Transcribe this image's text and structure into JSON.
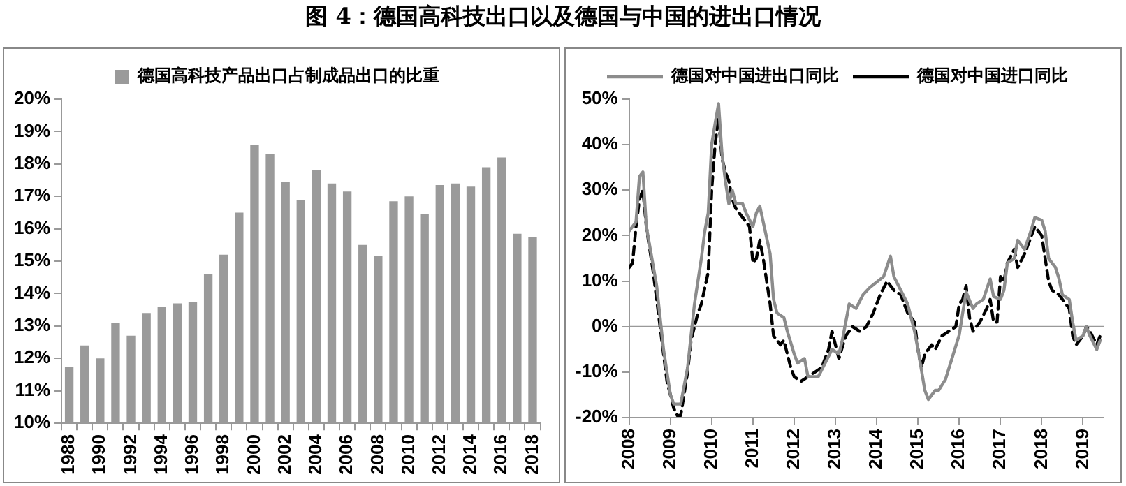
{
  "chart_data": [
    {
      "type": "bar",
      "title": "图 4：德国高科技出口以及德国与中国的进出口情况",
      "categories": [
        "1988",
        null,
        "1990",
        null,
        "1992",
        null,
        "1994",
        null,
        "1996",
        null,
        "1998",
        null,
        "2000",
        null,
        "2002",
        null,
        "2004",
        null,
        "2006",
        null,
        "2008",
        null,
        "2010",
        null,
        "2012",
        null,
        "2014",
        null,
        "2016",
        null,
        "2018"
      ],
      "series": [
        {
          "name": "德国高科技产品出口占制成品出口的比重",
          "color": "#9a9a9a",
          "values": [
            11.75,
            12.4,
            12.0,
            13.1,
            12.7,
            13.4,
            13.6,
            13.7,
            13.75,
            14.6,
            15.2,
            16.5,
            18.6,
            18.3,
            17.45,
            16.9,
            17.8,
            17.4,
            17.15,
            15.5,
            15.15,
            16.85,
            17.0,
            16.45,
            17.35,
            17.4,
            17.3,
            17.9,
            18.2,
            15.85,
            15.75
          ]
        }
      ],
      "ylim": [
        10,
        20
      ],
      "yticks": [
        {
          "value": 10,
          "label": "10%"
        },
        {
          "value": 11,
          "label": "11%"
        },
        {
          "value": 12,
          "label": "12%"
        },
        {
          "value": 13,
          "label": "13%"
        },
        {
          "value": 14,
          "label": "14%"
        },
        {
          "value": 15,
          "label": "15%"
        },
        {
          "value": 16,
          "label": "16%"
        },
        {
          "value": 17,
          "label": "17%"
        },
        {
          "value": 18,
          "label": "18%"
        },
        {
          "value": 19,
          "label": "19%"
        },
        {
          "value": 20,
          "label": "20%"
        }
      ],
      "grid": false,
      "legend": "top"
    },
    {
      "type": "line",
      "series": [
        {
          "name": "德国对中国进出口同比",
          "color": "#8c8c8c",
          "line_style": "solid",
          "x": [
            "2008-01",
            "2008-03",
            "2008-04",
            "2008-05",
            "2008-06",
            "2008-09",
            "2008-11",
            "2009-01",
            "2009-02",
            "2009-04",
            "2009-06",
            "2009-08",
            "2009-10",
            "2009-11",
            "2009-12",
            "2010-01",
            "2010-02",
            "2010-03",
            "2010-04",
            "2010-05",
            "2010-06",
            "2010-07",
            "2010-08",
            "2010-10",
            "2010-11",
            "2011-01",
            "2011-02",
            "2011-03",
            "2011-04",
            "2011-06",
            "2011-07",
            "2011-08",
            "2011-10",
            "2011-11",
            "2012-01",
            "2012-02",
            "2012-04",
            "2012-05",
            "2012-08",
            "2012-10",
            "2012-12",
            "2013-02",
            "2013-03",
            "2013-05",
            "2013-07",
            "2013-09",
            "2013-11",
            "2014-03",
            "2014-05",
            "2014-06",
            "2014-08",
            "2014-10",
            "2014-12",
            "2015-01",
            "2015-03",
            "2015-04",
            "2015-06",
            "2015-07",
            "2015-09",
            "2015-11",
            "2016-01",
            "2016-02",
            "2016-03",
            "2016-05",
            "2016-06",
            "2016-08",
            "2016-10",
            "2016-11",
            "2017-01",
            "2017-02",
            "2017-03",
            "2017-05",
            "2017-06",
            "2017-08",
            "2017-10",
            "2017-11",
            "2018-01",
            "2018-02",
            "2018-03",
            "2018-05",
            "2018-06",
            "2018-07",
            "2018-09",
            "2018-10",
            "2018-11",
            "2019-01",
            "2019-02",
            "2019-03",
            "2019-05",
            "2019-06"
          ],
          "values": [
            21,
            23,
            33,
            34,
            22,
            9,
            -5,
            -15,
            -17,
            -17,
            -9,
            5,
            15,
            21,
            25,
            40,
            44.6,
            49,
            38,
            32,
            27,
            30,
            27,
            27,
            25,
            22,
            25,
            26.5,
            23,
            16,
            6,
            3,
            2,
            -1,
            -6,
            -8,
            -7,
            -11,
            -11,
            -8,
            -5,
            -6,
            -3,
            5,
            4,
            7,
            8.6,
            11,
            15.5,
            11,
            8,
            5,
            -1,
            -5,
            -14,
            -16,
            -14,
            -14,
            -11.6,
            -6.7,
            -1.8,
            3,
            7.6,
            4,
            5,
            6,
            10.5,
            6.6,
            6,
            8,
            14,
            15,
            19,
            17,
            21.4,
            24,
            23.4,
            21,
            15,
            13,
            10.6,
            7,
            6,
            1,
            -3,
            -2,
            0,
            -2,
            -5,
            -3
          ]
        },
        {
          "name": "德国对中国进口同比",
          "color": "#000000",
          "line_style": "dashed",
          "x": [
            "2008-01",
            "2008-02",
            "2008-03",
            "2008-04",
            "2008-05",
            "2008-06",
            "2008-08",
            "2008-10",
            "2008-12",
            "2009-02",
            "2009-03",
            "2009-04",
            "2009-06",
            "2009-07",
            "2009-09",
            "2009-10",
            "2009-12",
            "2010-01",
            "2010-02",
            "2010-03",
            "2010-04",
            "2010-05",
            "2010-06",
            "2010-07",
            "2010-08",
            "2010-10",
            "2010-12",
            "2011-01",
            "2011-02",
            "2011-03",
            "2011-04",
            "2011-06",
            "2011-07",
            "2011-09",
            "2011-10",
            "2011-12",
            "2012-01",
            "2012-03",
            "2012-05",
            "2012-07",
            "2012-09",
            "2012-11",
            "2012-12",
            "2013-01",
            "2013-02",
            "2013-04",
            "2013-06",
            "2013-08",
            "2013-10",
            "2013-12",
            "2014-02",
            "2014-04",
            "2014-06",
            "2014-08",
            "2014-10",
            "2014-12",
            "2015-01",
            "2015-02",
            "2015-03",
            "2015-05",
            "2015-06",
            "2015-08",
            "2015-10",
            "2015-12",
            "2016-01",
            "2016-02",
            "2016-03",
            "2016-04",
            "2016-05",
            "2016-07",
            "2016-09",
            "2016-10",
            "2016-11",
            "2016-12",
            "2017-01",
            "2017-02",
            "2017-03",
            "2017-05",
            "2017-06",
            "2017-08",
            "2017-10",
            "2017-11",
            "2018-01",
            "2018-03",
            "2018-04",
            "2018-06",
            "2018-08",
            "2018-09",
            "2018-10",
            "2018-11",
            "2019-01",
            "2019-02",
            "2019-03",
            "2019-05",
            "2019-06"
          ],
          "values": [
            13,
            14,
            22,
            28,
            30,
            22,
            12,
            0,
            -12,
            -18,
            -19.5,
            -19.5,
            -10,
            -3,
            3,
            5,
            12,
            30,
            40,
            46,
            37,
            34,
            32,
            28,
            26,
            24,
            22,
            14,
            15,
            19,
            15,
            5,
            -2,
            -4,
            -3,
            -9,
            -11,
            -12,
            -11,
            -10,
            -9,
            -5,
            -1,
            -4,
            -7,
            -2,
            0,
            -1,
            0,
            3,
            7,
            10,
            8,
            7,
            3,
            1,
            -5,
            -9,
            -6,
            -4,
            -5,
            -2,
            -1,
            0,
            5,
            6,
            9,
            2,
            -1,
            1,
            4,
            6,
            1,
            1,
            11,
            10,
            14,
            17,
            13,
            16,
            20,
            22,
            20,
            10,
            8,
            7,
            5,
            4,
            -2,
            -4,
            -2,
            0,
            -1,
            -4,
            -2
          ]
        }
      ],
      "xlim": [
        "2008-01",
        "2019-07"
      ],
      "xticks": [
        "2008",
        "2009",
        "2010",
        "2011",
        "2012",
        "2013",
        "2014",
        "2015",
        "2016",
        "2017",
        "2018",
        "2019"
      ],
      "ylim": [
        -20,
        50
      ],
      "yticks": [
        {
          "value": -20,
          "label": "-20%"
        },
        {
          "value": -10,
          "label": "-10%"
        },
        {
          "value": 0,
          "label": "0%"
        },
        {
          "value": 10,
          "label": "10%"
        },
        {
          "value": 20,
          "label": "20%"
        },
        {
          "value": 30,
          "label": "30%"
        },
        {
          "value": 40,
          "label": "40%"
        },
        {
          "value": 50,
          "label": "50%"
        }
      ],
      "ref_lines": [
        {
          "axis": "y",
          "value": 0,
          "color": "#999999"
        }
      ],
      "grid": false,
      "legend": "top"
    }
  ]
}
